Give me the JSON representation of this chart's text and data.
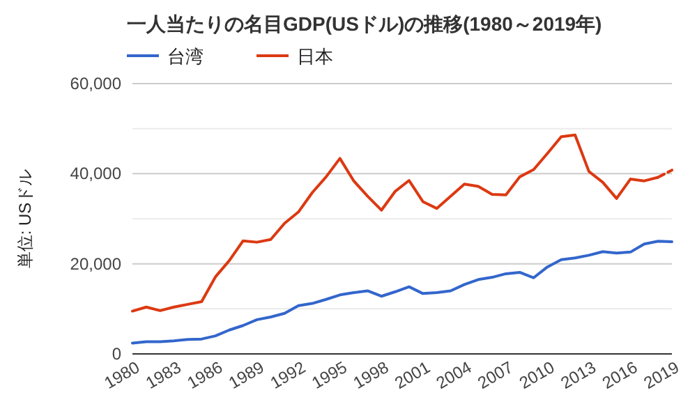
{
  "chart_data": {
    "type": "line",
    "title": "一人当たりの名目GDP(USドル)の推移(1980～2019年)",
    "ylabel": "単位: USドル",
    "x": [
      1980,
      1981,
      1982,
      1983,
      1984,
      1985,
      1986,
      1987,
      1988,
      1989,
      1990,
      1991,
      1992,
      1993,
      1994,
      1995,
      1996,
      1997,
      1998,
      1999,
      2000,
      2001,
      2002,
      2003,
      2004,
      2005,
      2006,
      2007,
      2008,
      2009,
      2010,
      2011,
      2012,
      2013,
      2014,
      2015,
      2016,
      2017,
      2018,
      2019
    ],
    "series": [
      {
        "name": "台湾",
        "color": "#3366cc",
        "values": [
          2400,
          2700,
          2700,
          2900,
          3200,
          3300,
          4000,
          5300,
          6300,
          7600,
          8200,
          9000,
          10700,
          11200,
          12100,
          13100,
          13600,
          14000,
          12800,
          13800,
          14900,
          13400,
          13600,
          14000,
          15400,
          16500,
          17000,
          17800,
          18100,
          16900,
          19300,
          20900,
          21300,
          21900,
          22700,
          22400,
          22600,
          24400,
          25000,
          24900
        ]
      },
      {
        "name": "日本",
        "color": "#dc3912",
        "values": [
          9500,
          10400,
          9600,
          10400,
          11000,
          11600,
          17100,
          20700,
          25100,
          24800,
          25400,
          29000,
          31500,
          35800,
          39300,
          43400,
          38400,
          35000,
          31900,
          36100,
          38500,
          33800,
          32300,
          35000,
          37700,
          37200,
          35400,
          35300,
          39300,
          40900,
          44500,
          48200,
          48600,
          40500,
          38100,
          34500,
          38800,
          38400,
          39200,
          null
        ]
      },
      {
        "color": "#dc3912",
        "line_style": "dashed",
        "values": [
          null,
          null,
          null,
          null,
          null,
          null,
          null,
          null,
          null,
          null,
          null,
          null,
          null,
          null,
          null,
          null,
          null,
          null,
          null,
          null,
          null,
          null,
          null,
          null,
          null,
          null,
          null,
          null,
          null,
          null,
          null,
          null,
          null,
          null,
          null,
          null,
          null,
          null,
          39200,
          40800
        ]
      }
    ],
    "xlim": [
      1980,
      2019
    ],
    "xticks": [
      1980,
      1983,
      1986,
      1989,
      1992,
      1995,
      1998,
      2001,
      2004,
      2007,
      2010,
      2013,
      2016,
      2019
    ],
    "ylim": [
      0,
      60000
    ],
    "yticks": [
      {
        "value": 0,
        "label": "0"
      },
      {
        "value": 10000,
        "label": null
      },
      {
        "value": 20000,
        "label": "20,000"
      },
      {
        "value": 30000,
        "label": null
      },
      {
        "value": 40000,
        "label": "40,000"
      },
      {
        "value": 50000,
        "label": null
      },
      {
        "value": 60000,
        "label": "60,000"
      }
    ],
    "grid": "y",
    "legend": "top left",
    "marker": "none",
    "line_style": "solid"
  }
}
